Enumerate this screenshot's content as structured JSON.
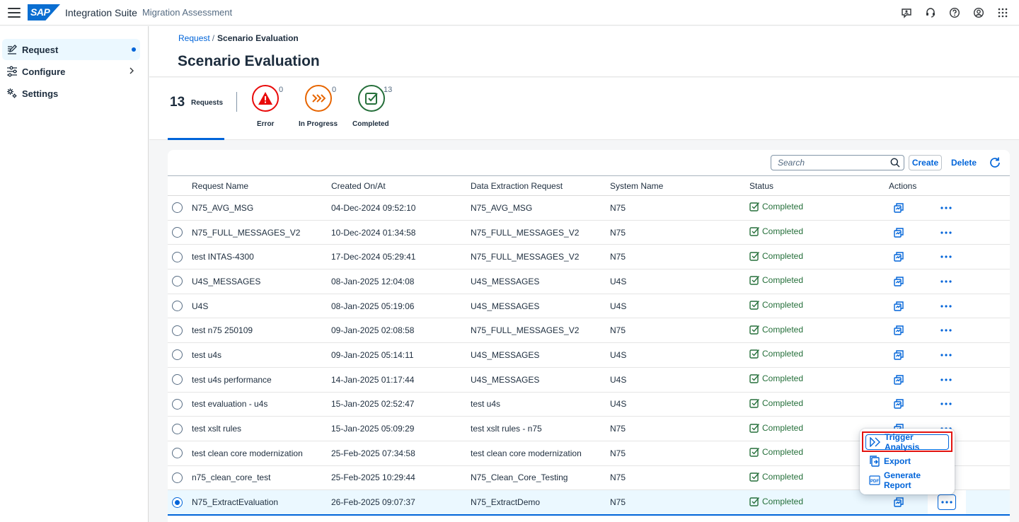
{
  "shell": {
    "logo": "SAP",
    "product": "Integration Suite",
    "subproduct": "Migration Assessment",
    "icons": [
      "feedback-icon",
      "support-icon",
      "help-icon",
      "user-profile-icon",
      "product-switch-icon"
    ]
  },
  "sidebar": {
    "items": [
      {
        "label": "Request",
        "icon": "edit-request-icon",
        "selected": true
      },
      {
        "label": "Configure",
        "icon": "configure-icon",
        "expandable": true
      },
      {
        "label": "Settings",
        "icon": "settings-icon"
      }
    ]
  },
  "breadcrumb": {
    "link": "Request",
    "separator": "/",
    "current": "Scenario Evaluation"
  },
  "page": {
    "title": "Scenario Evaluation"
  },
  "kpis": {
    "total": {
      "value": "13",
      "label": "Requests"
    },
    "error": {
      "value": "0",
      "label": "Error",
      "color": "#e90b0b"
    },
    "in_progress": {
      "value": "0",
      "label": "In Progress",
      "color": "#e76500"
    },
    "completed": {
      "value": "13",
      "label": "Completed",
      "color": "#256f3a"
    }
  },
  "toolbar": {
    "search_placeholder": "Search",
    "create_label": "Create",
    "delete_label": "Delete"
  },
  "table": {
    "columns": [
      "Request Name",
      "Created On/At",
      "Data Extraction Request",
      "System Name",
      "Status",
      "Actions"
    ],
    "rows": [
      {
        "name": "N75_AVG_MSG",
        "created": "04-Dec-2024 09:52:10",
        "der": "N75_AVG_MSG",
        "system": "N75",
        "status": "Completed"
      },
      {
        "name": "N75_FULL_MESSAGES_V2",
        "created": "10-Dec-2024 01:34:58",
        "der": "N75_FULL_MESSAGES_V2",
        "system": "N75",
        "status": "Completed"
      },
      {
        "name": "test INTAS-4300",
        "created": "17-Dec-2024 05:29:41",
        "der": "N75_FULL_MESSAGES_V2",
        "system": "N75",
        "status": "Completed"
      },
      {
        "name": "U4S_MESSAGES",
        "created": "08-Jan-2025 12:04:08",
        "der": "U4S_MESSAGES",
        "system": "U4S",
        "status": "Completed"
      },
      {
        "name": "U4S",
        "created": "08-Jan-2025 05:19:06",
        "der": "U4S_MESSAGES",
        "system": "U4S",
        "status": "Completed"
      },
      {
        "name": "test n75 250109",
        "created": "09-Jan-2025 02:08:58",
        "der": "N75_FULL_MESSAGES_V2",
        "system": "N75",
        "status": "Completed"
      },
      {
        "name": "test u4s",
        "created": "09-Jan-2025 05:14:11",
        "der": "U4S_MESSAGES",
        "system": "U4S",
        "status": "Completed"
      },
      {
        "name": "test u4s performance",
        "created": "14-Jan-2025 01:17:44",
        "der": "U4S_MESSAGES",
        "system": "U4S",
        "status": "Completed"
      },
      {
        "name": "test evaluation - u4s",
        "created": "15-Jan-2025 02:52:47",
        "der": "test u4s",
        "system": "U4S",
        "status": "Completed"
      },
      {
        "name": "test xslt rules",
        "created": "15-Jan-2025 05:09:29",
        "der": "test xslt rules - n75",
        "system": "N75",
        "status": "Completed"
      },
      {
        "name": "test clean core modernization",
        "created": "25-Feb-2025 07:34:58",
        "der": "test clean core modernization",
        "system": "N75",
        "status": "Completed"
      },
      {
        "name": "n75_clean_core_test",
        "created": "25-Feb-2025 10:29:44",
        "der": "N75_Clean_Core_Testing",
        "system": "N75",
        "status": "Completed"
      },
      {
        "name": "N75_ExtractEvaluation",
        "created": "26-Feb-2025 09:07:37",
        "der": "N75_ExtractDemo",
        "system": "N75",
        "status": "Completed",
        "selected": true
      }
    ]
  },
  "menu": {
    "items": [
      {
        "label": "Trigger Analysis",
        "icon": "trigger-analysis-icon"
      },
      {
        "label": "Export",
        "icon": "export-icon"
      },
      {
        "label": "Generate Report",
        "icon": "pdf-report-icon"
      }
    ]
  },
  "colors": {
    "accent": "#0064d9",
    "success": "#256f3a",
    "highlight": "#e3130f"
  }
}
